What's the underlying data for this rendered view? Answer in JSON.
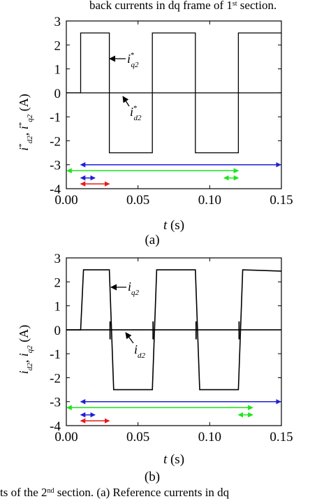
{
  "caption_top": "back currents in dq frame of 1",
  "caption_top_sup": "st",
  "caption_top_end": " section.",
  "caption_bottom_a": "ts of the 2",
  "caption_bottom_sup": "nd",
  "caption_bottom_b": " section. (a) Reference currents in dq",
  "colors": {
    "blue": "#1f1fd6",
    "green": "#19e619",
    "red": "#e51c1c",
    "trace": "#000000"
  },
  "chart_data": [
    {
      "type": "line",
      "panel_label": "(a)",
      "xlabel_var": "t",
      "xlabel_unit": " (s)",
      "ylabel": "i*d2, i*q2 (A)",
      "xlim": [
        0.0,
        0.15
      ],
      "ylim": [
        -4,
        3
      ],
      "xticks": [
        "0.00",
        "0.05",
        "0.10",
        "0.15"
      ],
      "yticks": [
        "3",
        "2",
        "1",
        "0",
        "-1",
        "-2",
        "-3",
        "-4"
      ],
      "series": [
        {
          "id": "iq2",
          "x": [
            0.0,
            0.01,
            0.01,
            0.03,
            0.03,
            0.06,
            0.06,
            0.09,
            0.09,
            0.12,
            0.12,
            0.15
          ],
          "y": [
            0,
            0,
            2.5,
            2.5,
            -2.5,
            -2.5,
            2.5,
            2.5,
            -2.5,
            -2.5,
            2.5,
            2.5
          ]
        },
        {
          "id": "id2",
          "x": [
            0.0,
            0.15
          ],
          "y": [
            0,
            0
          ]
        }
      ],
      "annotations": [
        {
          "text": "i",
          "sub": "q2",
          "sup": "*",
          "points_to": [
            0.03,
            2.3
          ]
        },
        {
          "text": "i",
          "sub": "d2",
          "sup": "*",
          "points_to": [
            0.0315,
            -0.05
          ]
        }
      ],
      "arrows": [
        {
          "color": "blue",
          "from": 0.01,
          "to": 0.15,
          "y": -3.0
        },
        {
          "color": "green",
          "from": 0.0,
          "to": 0.12,
          "y": -3.25
        },
        {
          "color": "blue",
          "from": 0.01,
          "to": 0.02,
          "y": -3.55
        },
        {
          "color": "green",
          "from": 0.11,
          "to": 0.12,
          "y": -3.55
        },
        {
          "color": "red",
          "from": 0.01,
          "to": 0.03,
          "y": -3.8
        }
      ]
    },
    {
      "type": "line",
      "panel_label": "(b)",
      "xlabel_var": "t",
      "xlabel_unit": " (s)",
      "ylabel": "id2, iq2 (A)",
      "xlim": [
        0.0,
        0.15
      ],
      "ylim": [
        -4,
        3
      ],
      "xticks": [
        "0.00",
        "0.05",
        "0.10",
        "0.15"
      ],
      "yticks": [
        "3",
        "2",
        "1",
        "0",
        "-1",
        "-2",
        "-3",
        "-4"
      ],
      "series": [
        {
          "id": "iq2",
          "x": [
            0.0,
            0.01,
            0.012,
            0.03,
            0.033,
            0.06,
            0.063,
            0.09,
            0.093,
            0.12,
            0.123,
            0.15
          ],
          "y": [
            0,
            0,
            2.5,
            2.5,
            -2.5,
            -2.5,
            2.5,
            2.5,
            -2.5,
            -2.5,
            2.5,
            2.45
          ]
        },
        {
          "id": "id2",
          "x": [
            0.0,
            0.15
          ],
          "y": [
            0,
            0
          ]
        }
      ],
      "annotations": [
        {
          "text": "i",
          "sub": "q2",
          "points_to": [
            0.0305,
            2.1
          ]
        },
        {
          "text": "i",
          "sub": "d2",
          "points_to": [
            0.0325,
            -0.05
          ]
        }
      ],
      "arrows": [
        {
          "color": "blue",
          "from": 0.01,
          "to": 0.15,
          "y": -3.0
        },
        {
          "color": "green",
          "from": 0.0,
          "to": 0.13,
          "y": -3.25
        },
        {
          "color": "blue",
          "from": 0.01,
          "to": 0.02,
          "y": -3.55
        },
        {
          "color": "green",
          "from": 0.12,
          "to": 0.13,
          "y": -3.55
        },
        {
          "color": "red",
          "from": 0.01,
          "to": 0.03,
          "y": -3.8
        }
      ]
    }
  ]
}
